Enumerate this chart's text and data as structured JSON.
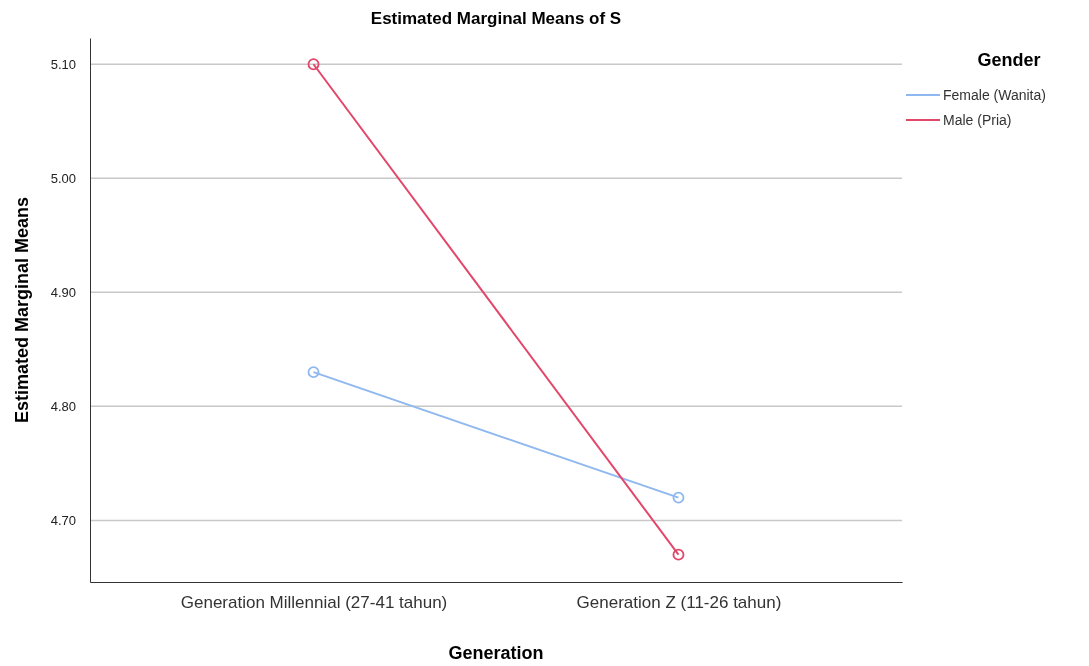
{
  "chart_data": {
    "type": "line",
    "title": "Estimated Marginal Means of S",
    "xlabel": "Generation",
    "ylabel": "Estimated Marginal Means",
    "legend_title": "Gender",
    "categories": [
      "Generation Millennial (27-41 tahun)",
      "Generation Z (11-26 tahun)"
    ],
    "series": [
      {
        "name": "Female (Wanita)",
        "color": "#8fb8f0",
        "values": [
          4.83,
          4.72
        ]
      },
      {
        "name": "Male (Pria)",
        "color": "#e2476a",
        "values": [
          5.1,
          4.67
        ]
      }
    ],
    "ylim": [
      4.646,
      5.123
    ],
    "yticks": [
      {
        "value": 4.7,
        "label": "4.70"
      },
      {
        "value": 4.8,
        "label": "4.80"
      },
      {
        "value": 4.9,
        "label": "4.90"
      },
      {
        "value": 5.0,
        "label": "5.00"
      },
      {
        "value": 5.1,
        "label": "5.10"
      }
    ],
    "grid": "y",
    "legend": "top right",
    "marker": "circle",
    "line_style": "solid"
  }
}
